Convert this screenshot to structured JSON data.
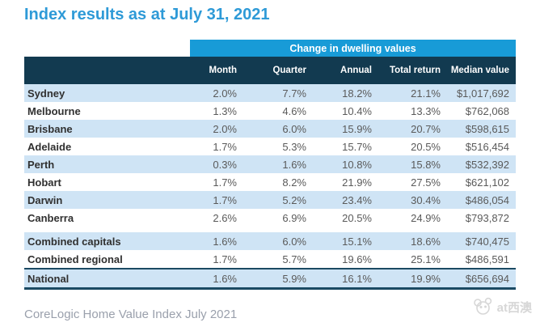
{
  "title": "Index results as at July 31, 2021",
  "table": {
    "band_label": "Change in dwelling values",
    "columns": [
      "",
      "Month",
      "Quarter",
      "Annual",
      "Total return",
      "Median value"
    ],
    "rows": [
      {
        "name": "Sydney",
        "values": [
          "2.0%",
          "7.7%",
          "18.2%",
          "21.1%",
          "$1,017,692"
        ],
        "shaded": true
      },
      {
        "name": "Melbourne",
        "values": [
          "1.3%",
          "4.6%",
          "10.4%",
          "13.3%",
          "$762,068"
        ],
        "shaded": false
      },
      {
        "name": "Brisbane",
        "values": [
          "2.0%",
          "6.0%",
          "15.9%",
          "20.7%",
          "$598,615"
        ],
        "shaded": true
      },
      {
        "name": "Adelaide",
        "values": [
          "1.7%",
          "5.3%",
          "15.7%",
          "20.5%",
          "$516,454"
        ],
        "shaded": false
      },
      {
        "name": "Perth",
        "values": [
          "0.3%",
          "1.6%",
          "10.8%",
          "15.8%",
          "$532,392"
        ],
        "shaded": true
      },
      {
        "name": "Hobart",
        "values": [
          "1.7%",
          "8.2%",
          "21.9%",
          "27.5%",
          "$621,102"
        ],
        "shaded": false
      },
      {
        "name": "Darwin",
        "values": [
          "1.7%",
          "5.2%",
          "23.4%",
          "30.4%",
          "$486,054"
        ],
        "shaded": true
      },
      {
        "name": "Canberra",
        "values": [
          "2.6%",
          "6.9%",
          "20.5%",
          "24.9%",
          "$793,872"
        ],
        "shaded": false
      },
      {
        "name": "Combined capitals",
        "values": [
          "1.6%",
          "6.0%",
          "15.1%",
          "18.6%",
          "$740,475"
        ],
        "shaded": true,
        "gap_before": true
      },
      {
        "name": "Combined regional",
        "values": [
          "1.7%",
          "5.7%",
          "19.6%",
          "25.1%",
          "$486,591"
        ],
        "shaded": false
      },
      {
        "name": "National",
        "values": [
          "1.6%",
          "5.9%",
          "16.1%",
          "19.9%",
          "$656,694"
        ],
        "shaded": true,
        "total": true
      }
    ]
  },
  "chart_data": {
    "type": "table",
    "title": "Index results as at July 31, 2021",
    "group_header": "Change in dwelling values",
    "columns": [
      "Month",
      "Quarter",
      "Annual",
      "Total return",
      "Median value"
    ],
    "rows": [
      {
        "region": "Sydney",
        "month": "2.0%",
        "quarter": "7.7%",
        "annual": "18.2%",
        "total_return": "21.1%",
        "median_value": "$1,017,692"
      },
      {
        "region": "Melbourne",
        "month": "1.3%",
        "quarter": "4.6%",
        "annual": "10.4%",
        "total_return": "13.3%",
        "median_value": "$762,068"
      },
      {
        "region": "Brisbane",
        "month": "2.0%",
        "quarter": "6.0%",
        "annual": "15.9%",
        "total_return": "20.7%",
        "median_value": "$598,615"
      },
      {
        "region": "Adelaide",
        "month": "1.7%",
        "quarter": "5.3%",
        "annual": "15.7%",
        "total_return": "20.5%",
        "median_value": "$516,454"
      },
      {
        "region": "Perth",
        "month": "0.3%",
        "quarter": "1.6%",
        "annual": "10.8%",
        "total_return": "15.8%",
        "median_value": "$532,392"
      },
      {
        "region": "Hobart",
        "month": "1.7%",
        "quarter": "8.2%",
        "annual": "21.9%",
        "total_return": "27.5%",
        "median_value": "$621,102"
      },
      {
        "region": "Darwin",
        "month": "1.7%",
        "quarter": "5.2%",
        "annual": "23.4%",
        "total_return": "30.4%",
        "median_value": "$486,054"
      },
      {
        "region": "Canberra",
        "month": "2.6%",
        "quarter": "6.9%",
        "annual": "20.5%",
        "total_return": "24.9%",
        "median_value": "$793,872"
      },
      {
        "region": "Combined capitals",
        "month": "1.6%",
        "quarter": "6.0%",
        "annual": "15.1%",
        "total_return": "18.6%",
        "median_value": "$740,475"
      },
      {
        "region": "Combined regional",
        "month": "1.7%",
        "quarter": "5.7%",
        "annual": "19.6%",
        "total_return": "25.1%",
        "median_value": "$486,591"
      },
      {
        "region": "National",
        "month": "1.6%",
        "quarter": "5.9%",
        "annual": "16.1%",
        "total_return": "19.9%",
        "median_value": "$656,694"
      }
    ]
  },
  "footer": "CoreLogic Home Value Index July 2021",
  "watermark": {
    "icon": "koala-icon",
    "label": "at西澳"
  },
  "colors": {
    "title_blue": "#2e9ad7",
    "band_blue": "#189bd7",
    "navy": "#123a50",
    "row_blue": "#cfe4f5",
    "value_gray": "#5a5a5a",
    "name_dark": "#303030",
    "footer_gray": "#9aa0ac",
    "watermark_gray": "#d7d7d7",
    "border_navy": "#1b4a63"
  }
}
